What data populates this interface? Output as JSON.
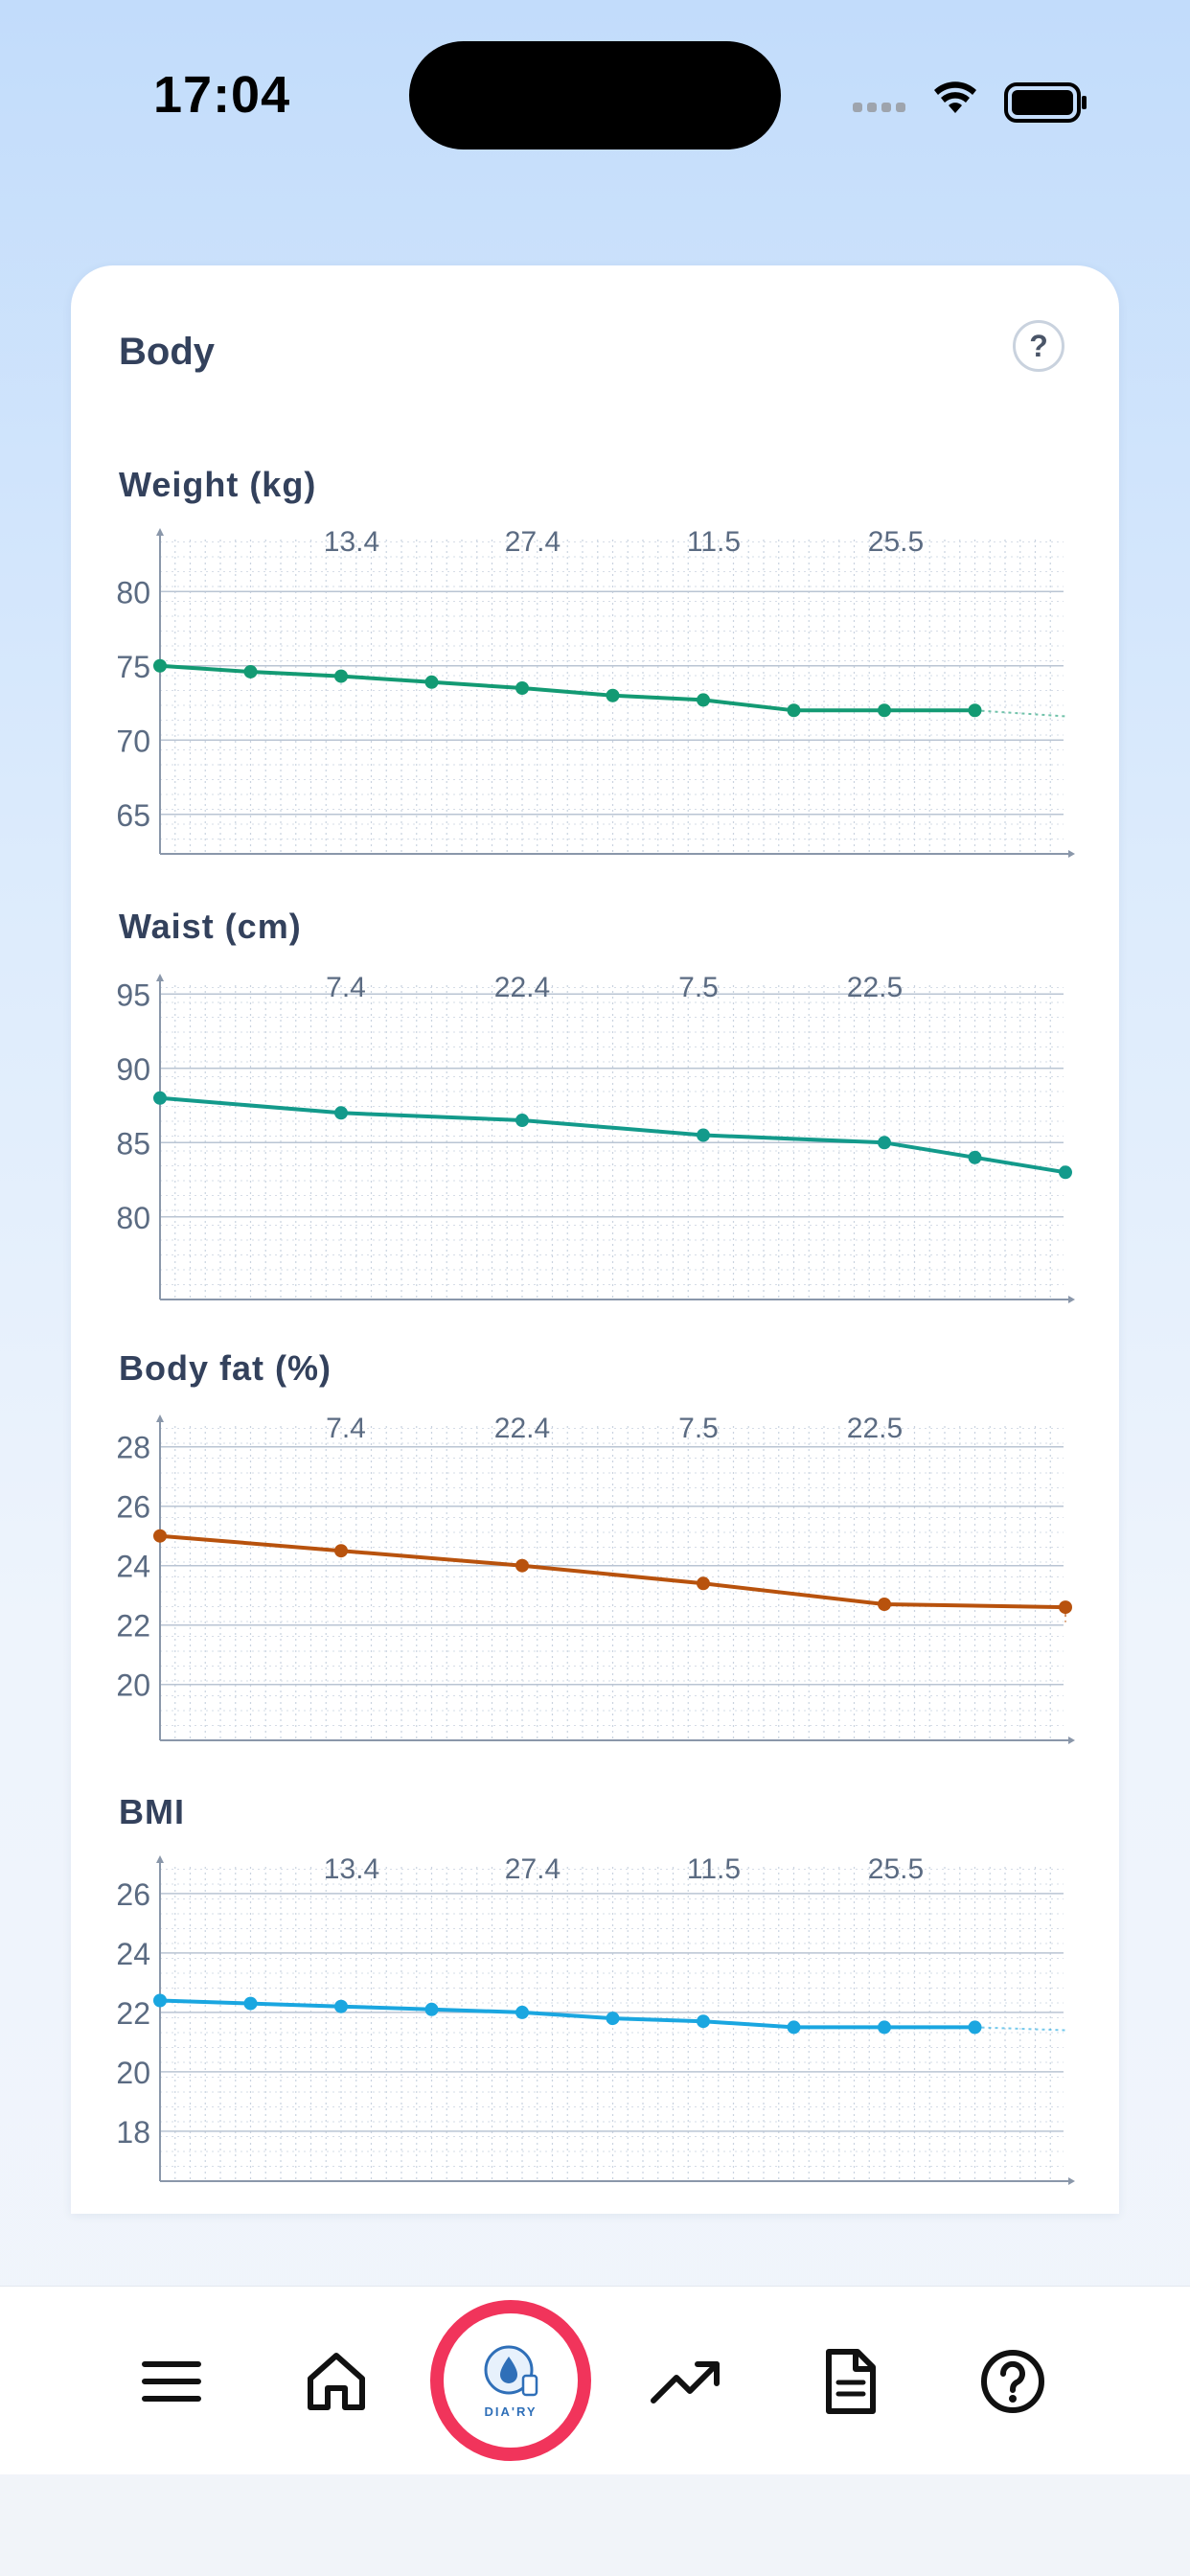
{
  "status_bar": {
    "time": "17:04"
  },
  "card": {
    "title": "Body",
    "help_label": "?"
  },
  "charts": [
    {
      "title": "Weight (kg)",
      "color": "#139a73",
      "type": "line",
      "top_labels": [
        "13.4",
        "27.4",
        "11.5",
        "25.5"
      ],
      "y_ticks": [
        "80",
        "75",
        "70",
        "65"
      ],
      "y_tick_values": [
        80,
        75,
        70,
        65
      ],
      "ylim": [
        63.5,
        83.5
      ],
      "x": [
        0,
        1,
        2,
        3,
        4,
        5,
        6,
        7,
        8,
        9
      ],
      "values": [
        75.0,
        74.6,
        74.3,
        73.9,
        73.5,
        73.0,
        72.7,
        72.0,
        72.0,
        72.0
      ],
      "trend_end": 71.6
    },
    {
      "title": "Waist (cm)",
      "color": "#139a8b",
      "type": "line",
      "top_labels": [
        "7.4",
        "22.4",
        "7.5",
        "22.5"
      ],
      "y_ticks": [
        "95",
        "90",
        "85",
        "80"
      ],
      "y_tick_values": [
        95,
        90,
        85,
        80
      ],
      "ylim": [
        75.6,
        95.6
      ],
      "x": [
        0,
        2,
        4,
        6,
        8,
        9,
        10
      ],
      "values": [
        88.0,
        87.0,
        86.5,
        85.5,
        85.0,
        84.0,
        83.0
      ],
      "trend_end": 82.7
    },
    {
      "title": "Body fat (%)",
      "color": "#b8520d",
      "type": "line",
      "top_labels": [
        "7.4",
        "22.4",
        "7.5",
        "22.5"
      ],
      "y_ticks": [
        "28",
        "26",
        "24",
        "22",
        "20"
      ],
      "y_tick_values": [
        28,
        26,
        24,
        22,
        20
      ],
      "ylim": [
        18.7,
        28.7
      ],
      "x": [
        0,
        2,
        4,
        6,
        8,
        10
      ],
      "values": [
        25.0,
        24.5,
        24.0,
        23.4,
        22.7,
        22.6
      ],
      "trend_end": 22.1
    },
    {
      "title": "BMI",
      "color": "#1aa6e0",
      "type": "line",
      "top_labels": [
        "13.4",
        "27.4",
        "11.5",
        "25.5"
      ],
      "y_ticks": [
        "26",
        "24",
        "22",
        "20",
        "18"
      ],
      "y_tick_values": [
        26,
        24,
        22,
        20,
        18
      ],
      "ylim": [
        16.9,
        26.9
      ],
      "x": [
        0,
        1,
        2,
        3,
        4,
        5,
        6,
        7,
        8,
        9
      ],
      "values": [
        22.4,
        22.3,
        22.2,
        22.1,
        22.0,
        21.8,
        21.7,
        21.5,
        21.5,
        21.5
      ],
      "trend_end": 21.4
    }
  ],
  "nav": {
    "items": [
      "menu-icon",
      "home-icon",
      "diary-logo",
      "trend-icon",
      "document-icon",
      "help-icon"
    ],
    "logo_text": "DIA'RY"
  }
}
